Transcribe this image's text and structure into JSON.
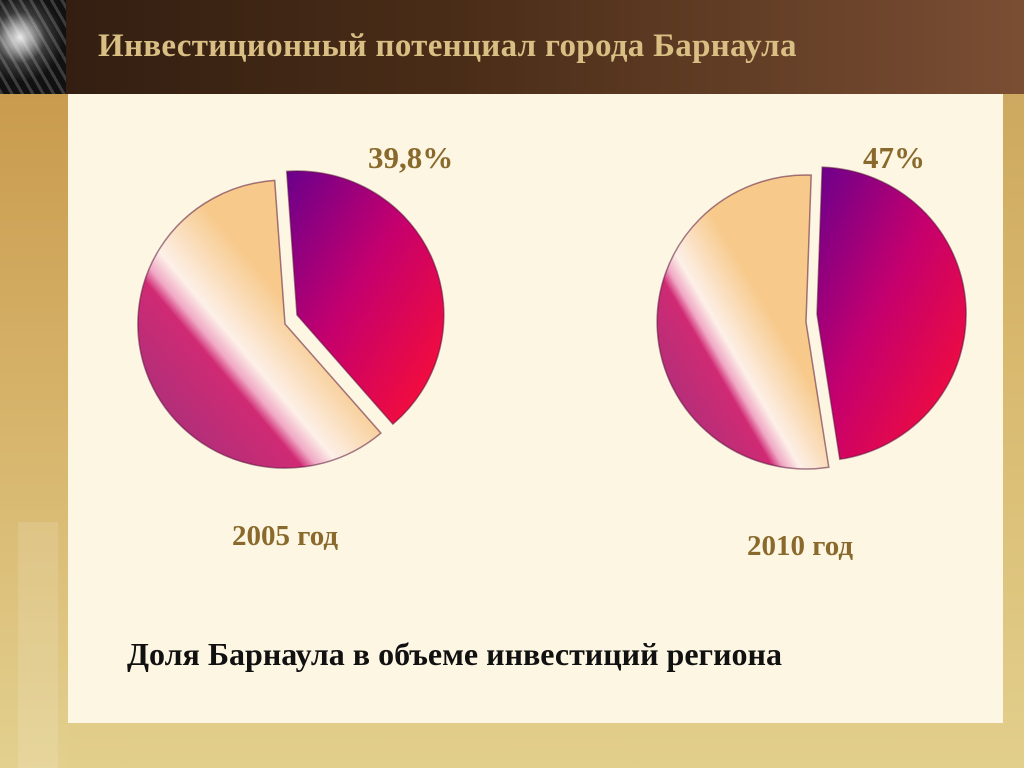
{
  "header": {
    "title": "Инвестиционный потенциал города Барнаула"
  },
  "caption": "Доля Барнаула в объеме инвестиций  региона",
  "chart_data": [
    {
      "type": "pie",
      "year_label": "2005 год",
      "share_label": "39,8%",
      "slices": [
        0.398,
        0.602
      ]
    },
    {
      "type": "pie",
      "year_label": "2010 год",
      "share_label": "47%",
      "slices": [
        0.47,
        0.53
      ]
    }
  ],
  "colors": {
    "share_dark": "#6a008c",
    "share_mid": "#c4006e",
    "share_bright": "#ff1030",
    "rest_peach": "#f7c98a",
    "rest_cream": "#fdf0e8",
    "rest_magenta": "#d02a74"
  }
}
